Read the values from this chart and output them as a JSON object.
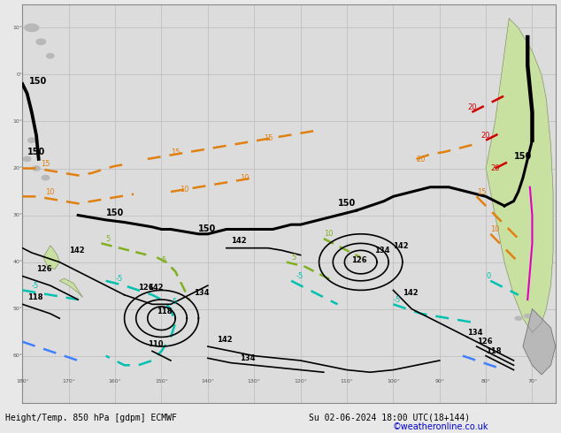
{
  "title_bottom": "Height/Temp. 850 hPa [gdpm] ECMWF",
  "subtitle_bottom": "Su 02-06-2024 18:00 UTC(18+144)",
  "credit": "©weatheronline.co.uk",
  "background_color": "#e8e8e8",
  "map_background": "#e0e0e0",
  "ocean_color": "#dcdcdc",
  "land_color_green": "#c8e0a0",
  "land_color_gray": "#b8b8b8",
  "grid_color": "#c0c0c0",
  "contour_black_color": "#000000",
  "contour_orange_color": "#e08010",
  "contour_cyan_color": "#00c0b0",
  "contour_blue_color": "#4080ff",
  "contour_green_color": "#80b020",
  "contour_red_color": "#d00000",
  "contour_pink_color": "#e000c0",
  "xlim": [
    -180,
    -65
  ],
  "ylim": [
    -65,
    15
  ],
  "figsize": [
    6.34,
    4.9
  ],
  "dpi": 100,
  "bottom_text_color": "#000000",
  "credit_color": "#0000cc",
  "font_size_label": 6,
  "font_size_bottom": 7,
  "font_size_credit": 7
}
